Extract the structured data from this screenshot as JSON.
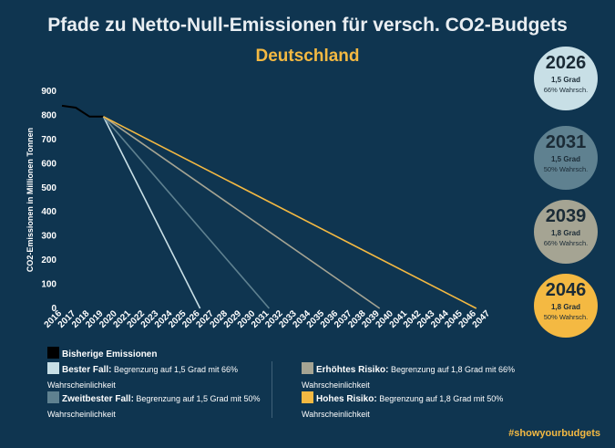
{
  "title": "Pfade zu Netto-Null-Emissionen für versch. CO2-Budgets",
  "subtitle": "Deutschland",
  "hashtag": "#showyourbudgets",
  "colors": {
    "background": "#0f3550",
    "historical": "#000000",
    "best": "#c8dfe6",
    "second": "#5f8190",
    "elevated": "#a5a493",
    "high": "#f4b942"
  },
  "bubbles": [
    {
      "year": "2026",
      "degree": "1,5 Grad",
      "prob": "66% Wahrsch.",
      "color": "#c8dfe6"
    },
    {
      "year": "2031",
      "degree": "1,5 Grad",
      "prob": "50% Wahrsch.",
      "color": "#5f8190"
    },
    {
      "year": "2039",
      "degree": "1,8 Grad",
      "prob": "66% Wahrsch.",
      "color": "#a5a493"
    },
    {
      "year": "2046",
      "degree": "1,8 Grad",
      "prob": "50% Wahrsch.",
      "color": "#f4b942"
    }
  ],
  "legend": [
    {
      "name": "Bisherige Emissionen",
      "desc": "",
      "cont": "",
      "color": "#000000"
    },
    {
      "name": "Bester Fall:",
      "desc": " Begrenzung auf 1,5 Grad mit 66%",
      "cont": "Wahrscheinlichkeit",
      "color": "#c8dfe6"
    },
    {
      "name": "Zweitbester Fall:",
      "desc": " Begrenzung auf 1,5 Grad mit 50%",
      "cont": "Wahrscheinlichkeit",
      "color": "#5f8190"
    },
    {
      "name": "Erhöhtes Risiko:",
      "desc": " Begrenzung auf 1,8 Grad mit 66%",
      "cont": "Wahrscheinlichkeit",
      "color": "#a5a493"
    },
    {
      "name": "Hohes Risiko:",
      "desc": " Begrenzung auf 1,8 Grad mit 50%",
      "cont": "Wahrscheinlichkeit",
      "color": "#f4b942"
    }
  ],
  "chart_data": {
    "type": "line",
    "ylabel": "CO2-Emissionen in Millionen Tonnen",
    "xlabel": "",
    "xlim": [
      2016,
      2047
    ],
    "ylim": [
      0,
      900
    ],
    "yticks": [
      0,
      100,
      200,
      300,
      400,
      500,
      600,
      700,
      800,
      900
    ],
    "xticks": [
      2016,
      2017,
      2018,
      2019,
      2020,
      2021,
      2022,
      2023,
      2024,
      2025,
      2026,
      2027,
      2028,
      2029,
      2030,
      2031,
      2032,
      2033,
      2034,
      2035,
      2036,
      2037,
      2038,
      2039,
      2040,
      2041,
      2042,
      2043,
      2044,
      2045,
      2046,
      2047
    ],
    "grid": false,
    "series": [
      {
        "name": "Bisherige Emissionen",
        "color": "#000000",
        "points": [
          [
            2016,
            840
          ],
          [
            2017,
            832
          ],
          [
            2018,
            795
          ],
          [
            2019,
            795
          ]
        ]
      },
      {
        "name": "Bester Fall",
        "color": "#c8dfe6",
        "points": [
          [
            2019,
            795
          ],
          [
            2026,
            0
          ]
        ]
      },
      {
        "name": "Zweitbester Fall",
        "color": "#5f8190",
        "points": [
          [
            2019,
            795
          ],
          [
            2031,
            0
          ]
        ]
      },
      {
        "name": "Erhöhtes Risiko",
        "color": "#a5a493",
        "points": [
          [
            2019,
            795
          ],
          [
            2039,
            0
          ]
        ]
      },
      {
        "name": "Hohes Risiko",
        "color": "#f4b942",
        "points": [
          [
            2019,
            795
          ],
          [
            2046,
            0
          ]
        ]
      }
    ]
  }
}
